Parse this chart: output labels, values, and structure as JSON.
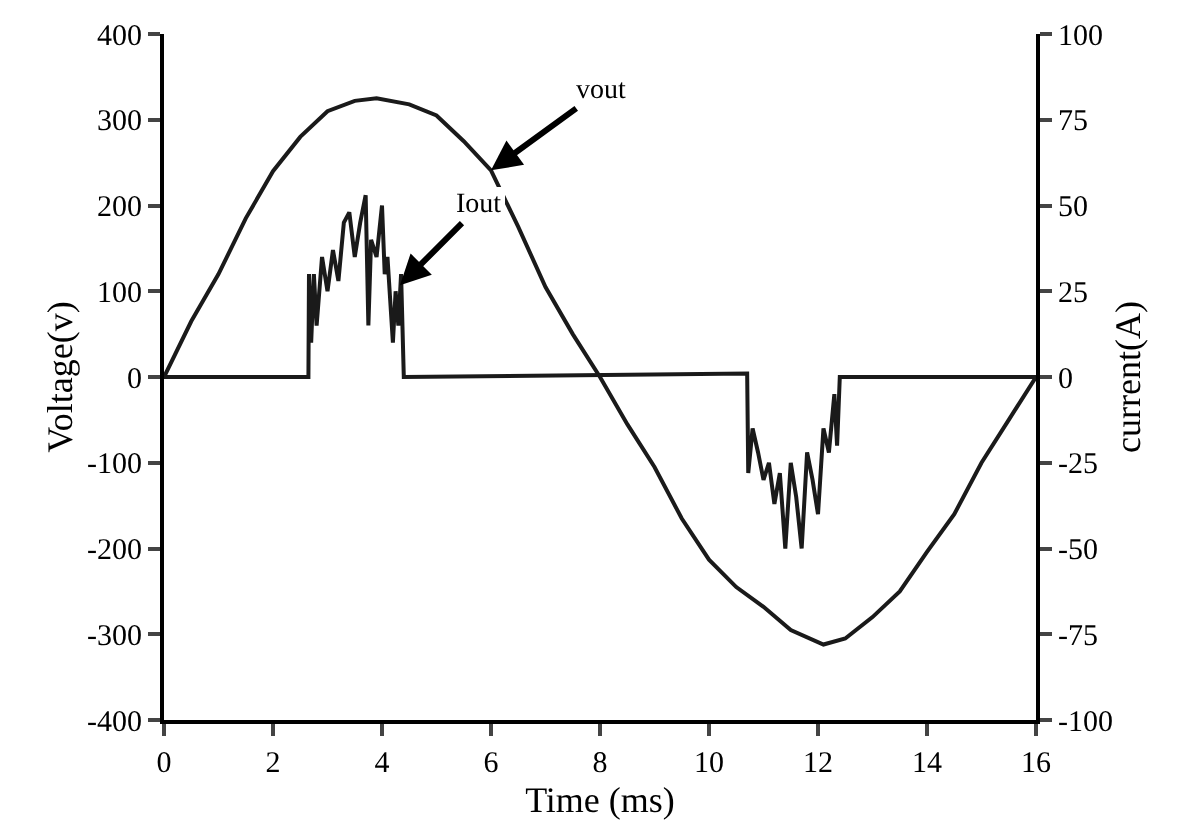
{
  "chart_data": {
    "type": "line",
    "xlabel": "Time (ms)",
    "ylabel": "Voltage(v)",
    "y2label": "current(A)",
    "xlim": [
      0,
      16
    ],
    "xticks": [
      0,
      2,
      4,
      6,
      8,
      10,
      12,
      14,
      16
    ],
    "ylim": [
      -400,
      400
    ],
    "yticks": [
      -400,
      -300,
      -200,
      -100,
      0,
      100,
      200,
      300,
      400
    ],
    "y2lim": [
      -100,
      100
    ],
    "y2ticks": [
      -100,
      -75,
      -50,
      -25,
      0,
      25,
      50,
      75,
      100
    ],
    "grid": false,
    "marker": "none",
    "line_style": "solid",
    "series": [
      {
        "color": "#1a1a1a",
        "x": [
          0,
          0.5,
          1,
          1.5,
          2,
          2.5,
          3,
          3.5,
          3.9,
          4.5,
          5,
          5.5,
          6,
          6.5,
          7,
          7.5,
          8,
          8.5,
          9,
          9.5,
          10,
          10.5,
          11,
          11.5,
          12.1,
          12.5,
          13,
          13.5,
          14,
          14.5,
          15,
          15.5,
          16
        ],
        "values": [
          0,
          65,
          120,
          185,
          240,
          280,
          310,
          322,
          325,
          318,
          305,
          275,
          241,
          175,
          105,
          50,
          0,
          -55,
          -105,
          -165,
          -213,
          -245,
          -268,
          -295,
          -312,
          -305,
          -280,
          -250,
          -204,
          -160,
          -100,
          -50,
          0
        ]
      },
      {
        "color": "#1a1a1a",
        "axis": "y2",
        "x": [
          0,
          2.65,
          2.66,
          2.7,
          2.75,
          2.8,
          2.9,
          3.0,
          3.1,
          3.2,
          3.3,
          3.4,
          3.5,
          3.6,
          3.7,
          3.75,
          3.8,
          3.9,
          4.0,
          4.05,
          4.1,
          4.2,
          4.25,
          4.3,
          4.35,
          4.4,
          10.7,
          10.72,
          10.8,
          10.9,
          11.0,
          11.1,
          11.2,
          11.3,
          11.4,
          11.5,
          11.6,
          11.7,
          11.8,
          11.9,
          12.0,
          12.1,
          12.2,
          12.3,
          12.35,
          12.4,
          16
        ],
        "values": [
          0,
          0,
          30,
          10,
          30,
          15,
          35,
          25,
          37,
          28,
          45,
          48,
          35,
          45,
          53,
          15,
          40,
          35,
          50,
          30,
          35,
          10,
          25,
          15,
          30,
          0,
          1,
          -28,
          -15,
          -22,
          -30,
          -25,
          -37,
          -28,
          -50,
          -25,
          -35,
          -50,
          -22,
          -30,
          -40,
          -15,
          -22,
          -5,
          -20,
          0,
          0
        ]
      }
    ],
    "annotations": [
      {
        "text": "vout",
        "x": 6,
        "y": 241
      },
      {
        "text": "Iout",
        "x": 4.33,
        "y": 107
      }
    ]
  }
}
